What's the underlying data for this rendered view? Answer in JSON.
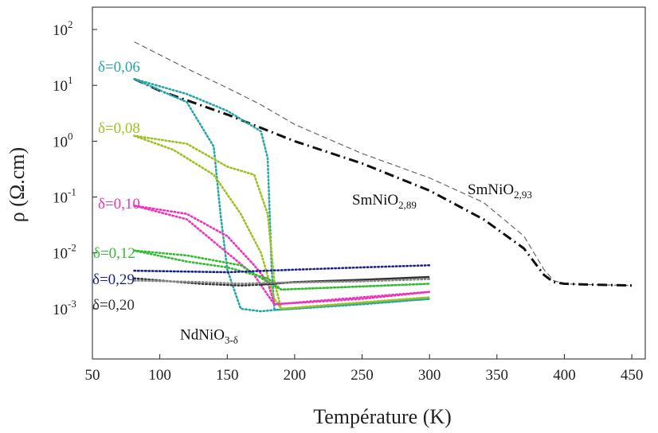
{
  "chart_data": {
    "type": "line",
    "xlabel": "Température (K)",
    "ylabel": "ρ (Ω.cm)",
    "xlim": [
      50,
      460
    ],
    "ylim_log10": [
      -3.9,
      2.4
    ],
    "log_y": true,
    "grid": false,
    "x_ticks": [
      50,
      100,
      150,
      200,
      250,
      300,
      350,
      400,
      450
    ],
    "y_ticks": [
      {
        "exp": 2,
        "base": "10",
        "sup": "2"
      },
      {
        "exp": 1,
        "base": "10",
        "sup": "1"
      },
      {
        "exp": 0,
        "base": "10",
        "sup": "0"
      },
      {
        "exp": -1,
        "base": "10",
        "sup": "-1"
      },
      {
        "exp": -2,
        "base": "10",
        "sup": "-2"
      },
      {
        "exp": -3,
        "base": "10",
        "sup": "-3"
      }
    ],
    "series": [
      {
        "name": "SmNiO2,93",
        "label": {
          "text": "SmNiO",
          "sub": "2,93"
        },
        "color": "#666666",
        "style": "dashed",
        "points": [
          [
            81,
            60
          ],
          [
            120,
            20
          ],
          [
            150,
            9
          ],
          [
            175,
            4.5
          ],
          [
            200,
            2
          ],
          [
            250,
            0.6
          ],
          [
            300,
            0.22
          ],
          [
            340,
            0.08
          ],
          [
            370,
            0.02
          ],
          [
            385,
            0.005
          ],
          [
            392,
            0.0032
          ],
          [
            400,
            0.0028
          ],
          [
            420,
            0.0027
          ],
          [
            450,
            0.0026
          ]
        ]
      },
      {
        "name": "SmNiO2,89",
        "label": {
          "text": "SmNiO",
          "sub": "2,89"
        },
        "color": "#111111",
        "style": "dashdot",
        "points": [
          [
            81,
            13
          ],
          [
            100,
            8
          ],
          [
            150,
            3
          ],
          [
            200,
            1
          ],
          [
            250,
            0.4
          ],
          [
            300,
            0.13
          ],
          [
            340,
            0.04
          ],
          [
            370,
            0.012
          ],
          [
            385,
            0.004
          ],
          [
            392,
            0.003
          ],
          [
            400,
            0.0028
          ],
          [
            420,
            0.0027
          ],
          [
            450,
            0.0026
          ]
        ]
      },
      {
        "name": "δ=0,06",
        "label": {
          "text": "δ=0,06"
        },
        "color": "#27a6a6",
        "style": "dotted",
        "points": [
          [
            81,
            13
          ],
          [
            120,
            5
          ],
          [
            140,
            0.8
          ],
          [
            145,
            0.05
          ],
          [
            150,
            0.005
          ],
          [
            160,
            0.001
          ],
          [
            175,
            0.0009
          ],
          [
            185,
            0.00095
          ],
          [
            200,
            0.001
          ],
          [
            250,
            0.0012
          ],
          [
            300,
            0.0015
          ],
          [
            185,
            0.00095
          ],
          [
            183,
            0.005
          ],
          [
            180,
            0.5
          ],
          [
            175,
            1.5
          ],
          [
            150,
            3.5
          ],
          [
            120,
            7
          ],
          [
            81,
            13
          ]
        ]
      },
      {
        "name": "δ=0,08",
        "label": {
          "text": "δ=0,08"
        },
        "color": "#9bc21f",
        "style": "dotted",
        "points": [
          [
            81,
            1.25
          ],
          [
            110,
            0.7
          ],
          [
            140,
            0.25
          ],
          [
            160,
            0.05
          ],
          [
            175,
            0.01
          ],
          [
            185,
            0.0015
          ],
          [
            190,
            0.001
          ],
          [
            250,
            0.0013
          ],
          [
            300,
            0.0016
          ],
          [
            190,
            0.001
          ],
          [
            185,
            0.003
          ],
          [
            180,
            0.05
          ],
          [
            170,
            0.25
          ],
          [
            150,
            0.35
          ],
          [
            120,
            0.9
          ],
          [
            81,
            1.25
          ]
        ]
      },
      {
        "name": "δ=0,10",
        "label": {
          "text": "δ=0,10"
        },
        "color": "#ee33bb",
        "style": "dotted",
        "points": [
          [
            81,
            0.07
          ],
          [
            120,
            0.04
          ],
          [
            150,
            0.01
          ],
          [
            170,
            0.004
          ],
          [
            182,
            0.0015
          ],
          [
            185,
            0.0012
          ],
          [
            250,
            0.0015
          ],
          [
            300,
            0.002
          ],
          [
            185,
            0.0012
          ],
          [
            180,
            0.003
          ],
          [
            170,
            0.006
          ],
          [
            150,
            0.02
          ],
          [
            120,
            0.05
          ],
          [
            81,
            0.07
          ]
        ]
      },
      {
        "name": "δ=0,12",
        "label": {
          "text": "δ=0,12"
        },
        "color": "#33bb33",
        "style": "dotted",
        "points": [
          [
            81,
            0.011
          ],
          [
            120,
            0.009
          ],
          [
            160,
            0.006
          ],
          [
            180,
            0.003
          ],
          [
            190,
            0.0022
          ],
          [
            250,
            0.0025
          ],
          [
            300,
            0.0028
          ],
          [
            190,
            0.0022
          ],
          [
            180,
            0.0035
          ],
          [
            150,
            0.0055
          ],
          [
            120,
            0.007
          ],
          [
            81,
            0.011
          ]
        ]
      },
      {
        "name": "δ=0,29",
        "label": {
          "text": "δ=0,29"
        },
        "color": "#1a2288",
        "style": "dotted",
        "points": [
          [
            81,
            0.0048
          ],
          [
            150,
            0.0045
          ],
          [
            200,
            0.005
          ],
          [
            250,
            0.0055
          ],
          [
            300,
            0.006
          ]
        ]
      },
      {
        "name": "δ=0,20",
        "label": {
          "text": "δ=0,20"
        },
        "color": "#333333",
        "style": "dotted",
        "points": [
          [
            81,
            0.0035
          ],
          [
            130,
            0.0028
          ],
          [
            160,
            0.0026
          ],
          [
            175,
            0.0027
          ]
        ]
      },
      {
        "name": "δ=0,20 (solid)",
        "color": "#333333",
        "style": "solid",
        "points": [
          [
            175,
            0.0027
          ],
          [
            200,
            0.003
          ],
          [
            250,
            0.0033
          ],
          [
            300,
            0.0037
          ]
        ]
      },
      {
        "name": "δ=0,20 gray",
        "color": "#888888",
        "style": "dotted",
        "points": [
          [
            81,
            0.0032
          ],
          [
            130,
            0.003
          ],
          [
            160,
            0.0028
          ],
          [
            180,
            0.0029
          ],
          [
            250,
            0.0031
          ],
          [
            300,
            0.0034
          ]
        ]
      }
    ],
    "annotations": [
      {
        "text": "NdNiO",
        "sub": "3-δ",
        "x": 115,
        "y_log": -3.55
      }
    ]
  }
}
